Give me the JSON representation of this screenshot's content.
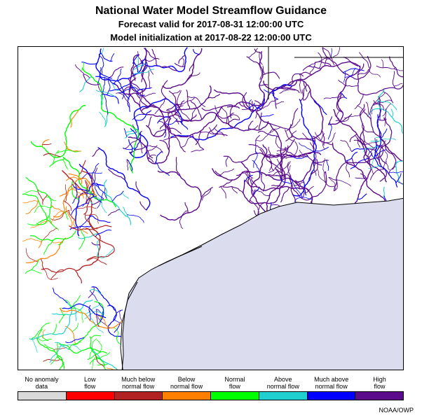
{
  "header": {
    "title": "National Water Model Streamflow Guidance",
    "valid": "Forecast valid for 2017-08-31 12:00:00 UTC",
    "init": "Model initialization at 2017-08-22 12:00:00 UTC"
  },
  "legend": [
    {
      "line1": "No anomaly",
      "line2": "data",
      "color": "#d9d9d9"
    },
    {
      "line1": "Low",
      "line2": "flow",
      "color": "#ff0000"
    },
    {
      "line1": "Much below",
      "line2": "normal flow",
      "color": "#b22222"
    },
    {
      "line1": "Below",
      "line2": "normal flow",
      "color": "#ff8000"
    },
    {
      "line1": "Normal",
      "line2": "flow",
      "color": "#00ff00"
    },
    {
      "line1": "Above",
      "line2": "normal flow",
      "color": "#20d0d0"
    },
    {
      "line1": "Much above",
      "line2": "normal flow",
      "color": "#0000ff"
    },
    {
      "line1": "High",
      "line2": "flow",
      "color": "#5a0a8a"
    }
  ],
  "credit": "NOAA/OWP",
  "map_colors": {
    "water": "#dcdcef",
    "coast": "#000000",
    "boundary": "#000000"
  }
}
